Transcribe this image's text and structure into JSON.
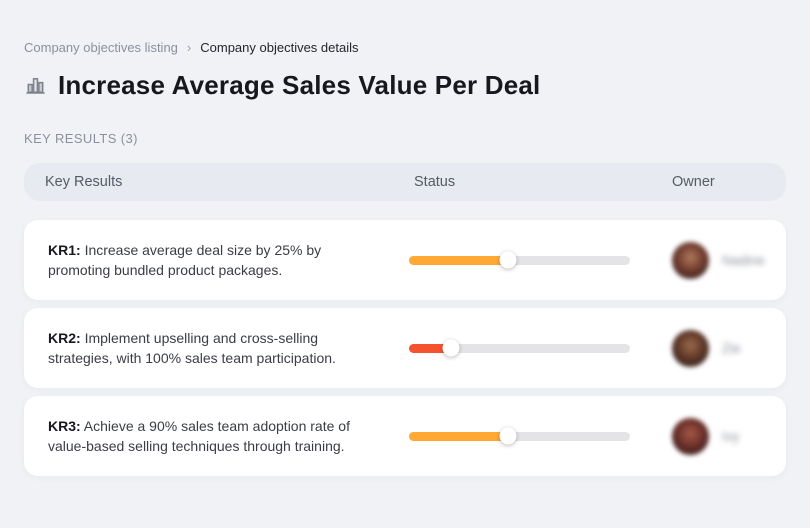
{
  "breadcrumb": {
    "items": [
      {
        "label": "Company objectives listing"
      },
      {
        "label": "Company objectives details"
      }
    ],
    "separator": "›"
  },
  "header": {
    "icon": "bar-chart-icon",
    "title": "Increase Average Sales Value Per Deal"
  },
  "section": {
    "label": "KEY RESULTS (3)"
  },
  "table": {
    "columns": [
      "Key Results",
      "Status",
      "Owner"
    ]
  },
  "rows": [
    {
      "kr": "KR1:",
      "text": "Increase average deal size by 25% by promoting bundled product packages.",
      "progress": 45,
      "bar_color": "#FFA834",
      "owner": "Nadine",
      "avatar_colors": [
        "#b07a5e",
        "#6e3a2c",
        "#241a1c"
      ]
    },
    {
      "kr": "KR2:",
      "text": "Implement upselling and cross-selling strategies, with 100% sales team participation.",
      "progress": 19,
      "bar_color": "#F4532E",
      "owner": "Zie",
      "avatar_colors": [
        "#9a6a4e",
        "#5e3626",
        "#1e1a20"
      ]
    },
    {
      "kr": "KR3:",
      "text": "Achieve a 90% sales team adoption rate of value-based selling techniques through training.",
      "progress": 45,
      "bar_color": "#FFA834",
      "owner": "Ivy",
      "avatar_colors": [
        "#a55848",
        "#6a2f28",
        "#201418"
      ]
    }
  ],
  "colors": {
    "page_bg": "#f1f2f5",
    "header_bg": "#e7eaf1",
    "card_bg": "#ffffff",
    "track": "#e4e4e7",
    "orange": "#FFA834",
    "red": "#F4532E"
  }
}
